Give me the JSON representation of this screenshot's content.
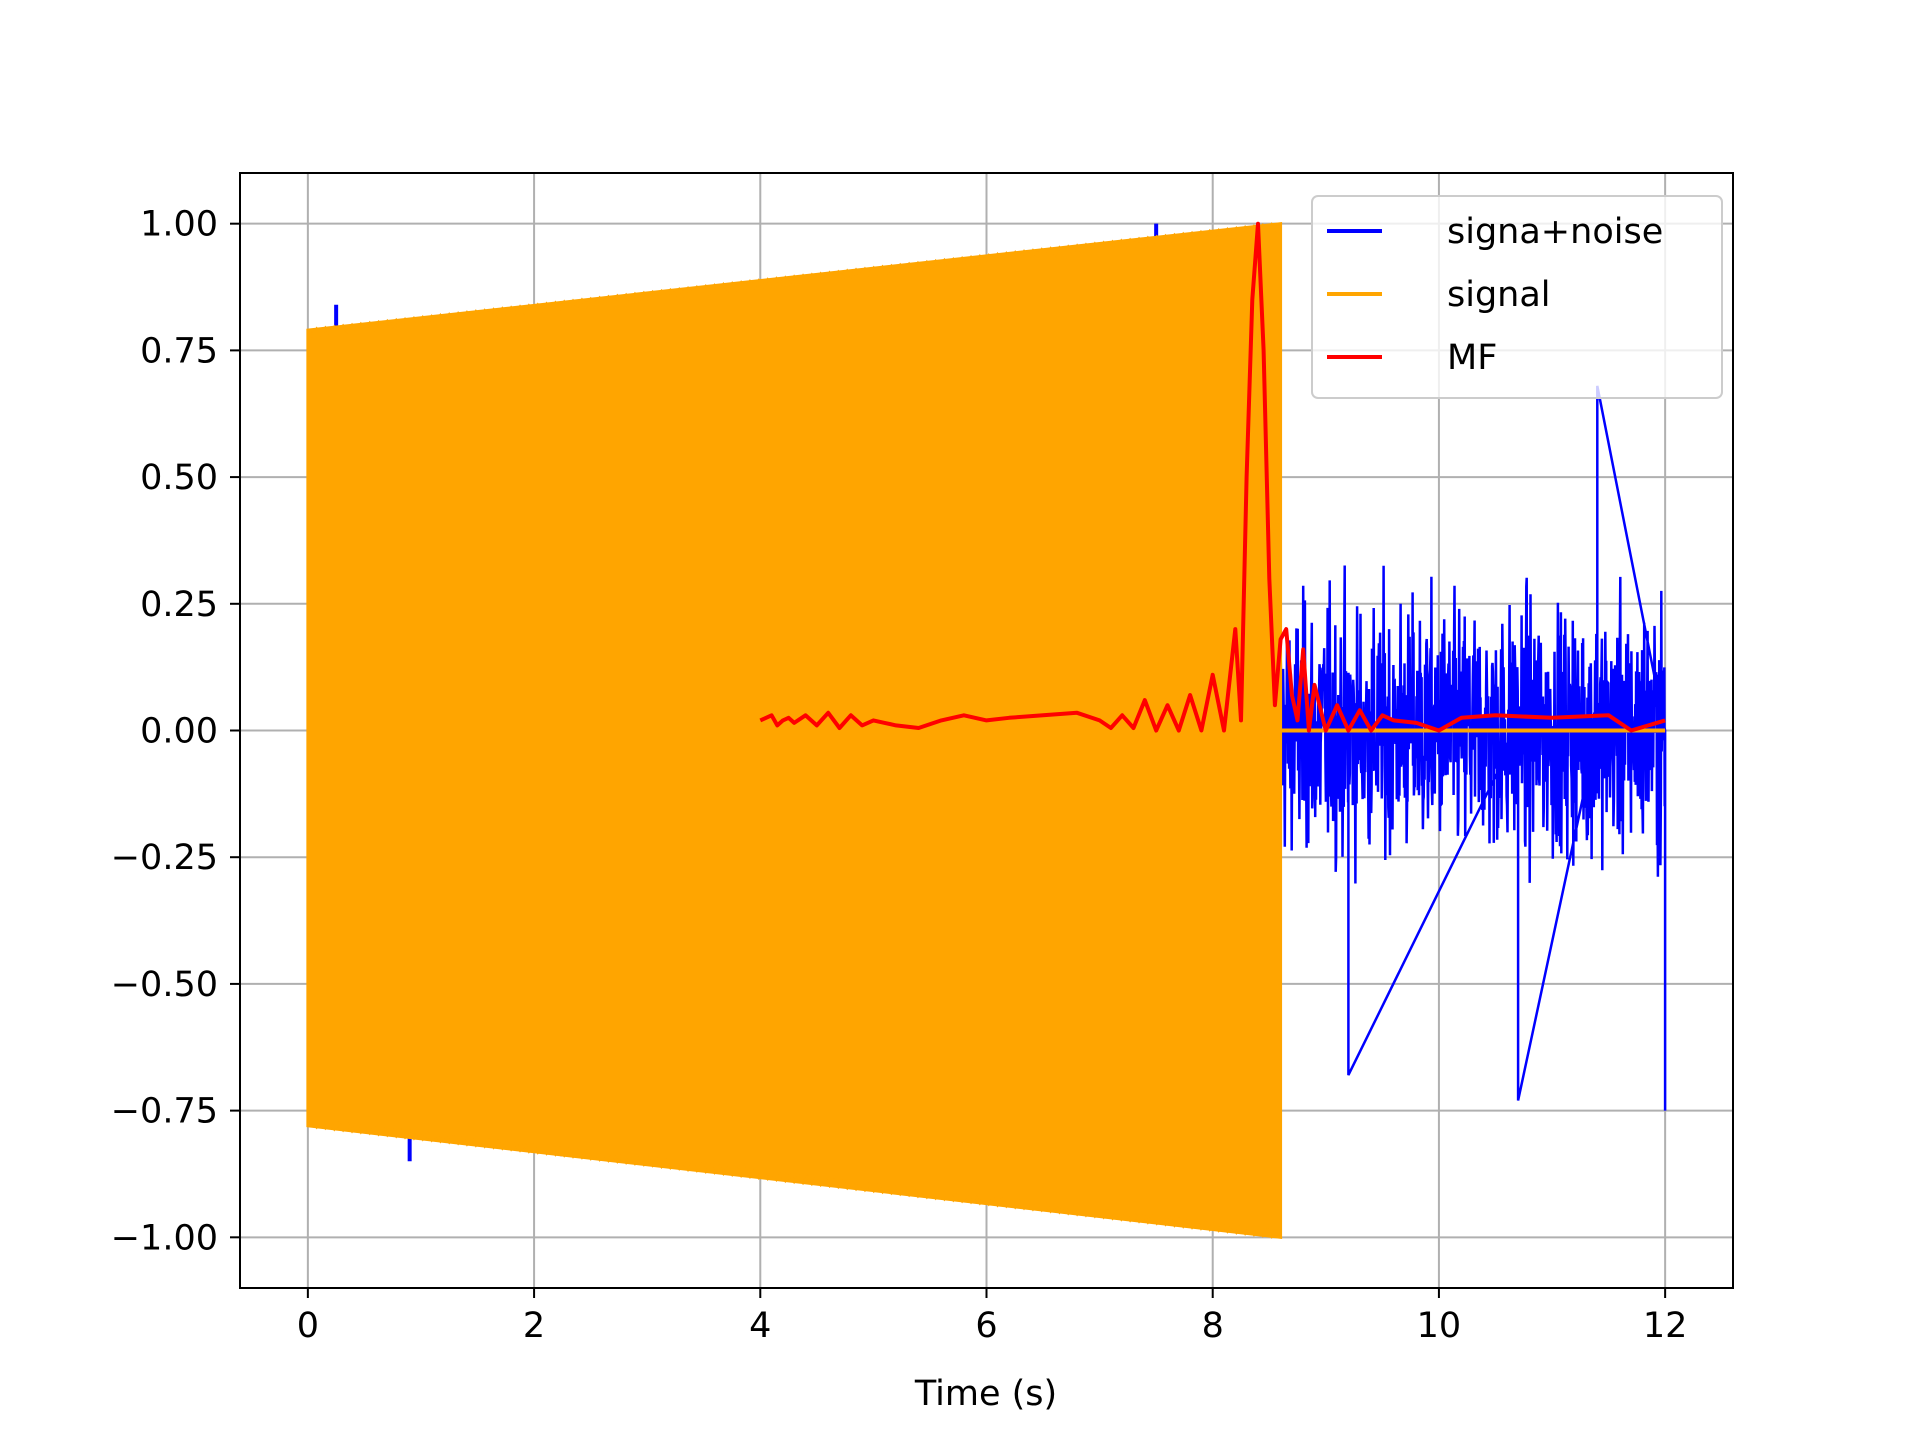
{
  "chart_data": {
    "type": "line",
    "title": "",
    "xlabel": "Time (s)",
    "ylabel": "",
    "xlim": [
      -0.6,
      12.6
    ],
    "ylim": [
      -1.1,
      1.1
    ],
    "x_ticks": [
      0,
      2,
      4,
      6,
      8,
      10,
      12
    ],
    "x_tick_labels": [
      "0",
      "2",
      "4",
      "6",
      "8",
      "10",
      "12"
    ],
    "y_ticks": [
      -1.0,
      -0.75,
      -0.5,
      -0.25,
      0.0,
      0.25,
      0.5,
      0.75,
      1.0
    ],
    "y_tick_labels": [
      "−1.00",
      "−0.75",
      "−0.50",
      "−0.25",
      "0.00",
      "0.25",
      "0.50",
      "0.75",
      "1.00"
    ],
    "grid": true,
    "legend_position": "top-right",
    "series": [
      {
        "name": "signa+noise",
        "color": "#0000ff",
        "description_values": {
          "segment_with_chirp": {
            "x_range": [
              0,
              8.6
            ],
            "amplitude_envelope_start": 0.79,
            "amplitude_envelope_end": 1.0
          },
          "noise_only": {
            "x_range": [
              8.6,
              12.0
            ],
            "approx_range": [
              -0.75,
              0.71
            ]
          },
          "notable_spikes": [
            {
              "x": 0.25,
              "y": 0.84
            },
            {
              "x": 0.9,
              "y": -0.85
            },
            {
              "x": 2.25,
              "y": -0.84
            },
            {
              "x": 4.5,
              "y": -0.89
            },
            {
              "x": 7.5,
              "y": 1.0
            },
            {
              "x": 9.2,
              "y": -0.68
            },
            {
              "x": 10.7,
              "y": -0.73
            },
            {
              "x": 11.4,
              "y": 0.68
            },
            {
              "x": 12.0,
              "y": -0.75
            }
          ]
        }
      },
      {
        "name": "signal",
        "color": "#ffa500",
        "description_values": {
          "envelope_start": {
            "x": 0.0,
            "upper": 0.79,
            "lower": -0.78
          },
          "envelope_end": {
            "x": 8.6,
            "upper": 1.0,
            "lower": -1.0
          },
          "after_end": {
            "x_range": [
              8.6,
              12.0
            ],
            "y": 0.0
          }
        }
      },
      {
        "name": "MF",
        "color": "#ff0000",
        "x": [
          4.0,
          4.1,
          4.15,
          4.2,
          4.25,
          4.3,
          4.4,
          4.5,
          4.6,
          4.7,
          4.8,
          4.9,
          5.0,
          5.1,
          5.2,
          5.4,
          5.6,
          5.8,
          6.0,
          6.2,
          6.5,
          6.8,
          7.0,
          7.1,
          7.2,
          7.3,
          7.4,
          7.5,
          7.6,
          7.7,
          7.8,
          7.9,
          8.0,
          8.1,
          8.2,
          8.25,
          8.3,
          8.35,
          8.4,
          8.45,
          8.5,
          8.55,
          8.6,
          8.65,
          8.7,
          8.75,
          8.8,
          8.85,
          8.9,
          9.0,
          9.1,
          9.2,
          9.3,
          9.4,
          9.5,
          9.6,
          9.8,
          10.0,
          10.2,
          10.5,
          11.0,
          11.5,
          11.7,
          12.0
        ],
        "y": [
          0.02,
          0.03,
          0.01,
          0.02,
          0.025,
          0.015,
          0.03,
          0.01,
          0.035,
          0.005,
          0.03,
          0.01,
          0.02,
          0.015,
          0.01,
          0.005,
          0.02,
          0.03,
          0.02,
          0.025,
          0.03,
          0.035,
          0.02,
          0.005,
          0.03,
          0.005,
          0.06,
          0.0,
          0.05,
          0.0,
          0.07,
          0.0,
          0.11,
          0.0,
          0.2,
          0.02,
          0.5,
          0.85,
          1.0,
          0.75,
          0.3,
          0.05,
          0.18,
          0.2,
          0.07,
          0.02,
          0.16,
          0.0,
          0.09,
          0.0,
          0.05,
          0.0,
          0.04,
          0.0,
          0.03,
          0.02,
          0.015,
          0.0,
          0.025,
          0.03,
          0.025,
          0.03,
          0.0,
          0.02
        ]
      }
    ]
  },
  "colors": {
    "signal_noise": "#0000ff",
    "signal": "#ffa500",
    "mf": "#ff0000",
    "grid": "#b0b0b0",
    "axes": "#000000"
  }
}
